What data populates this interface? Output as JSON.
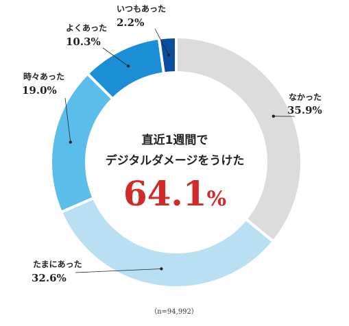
{
  "chart_data": {
    "type": "pie",
    "style": "donut",
    "categories": [
      "なかった",
      "たまにあった",
      "時々あった",
      "よくあった",
      "いつもあった"
    ],
    "values": [
      35.9,
      32.6,
      19.0,
      10.3,
      2.2
    ],
    "value_labels": [
      "35.9%",
      "32.6%",
      "19.0%",
      "10.3%",
      "2.2%"
    ],
    "colors": [
      "#dcdcdc",
      "#b9dff3",
      "#5bbdea",
      "#1b8ed6",
      "#0b4d9e"
    ],
    "center": {
      "line1": "直近1週間で",
      "line2": "デジタルダメージをうけた",
      "value": "64.1",
      "unit": "%",
      "value_color": "#d12a2a"
    },
    "note": "（n=94,992）",
    "legend": "none"
  }
}
